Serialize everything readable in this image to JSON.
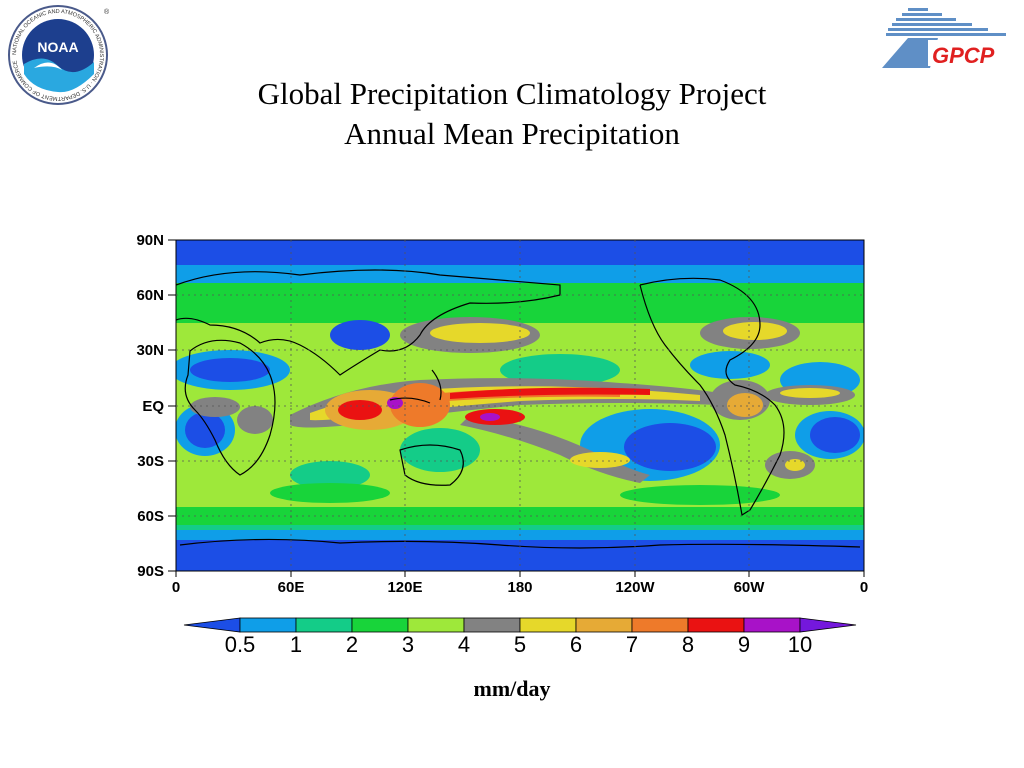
{
  "logos": {
    "noaa": {
      "wordmark": "NOAA",
      "ring_text": "NATIONAL OCEANIC AND ATMOSPHERIC ADMINISTRATION · U.S. DEPARTMENT OF COMMERCE",
      "registered": "®"
    },
    "gpcp": {
      "wordmark": "GPCP"
    }
  },
  "title": {
    "line1": "Global Precipitation Climatology Project",
    "line2": "Annual Mean Precipitation"
  },
  "map": {
    "y_ticks": [
      "90N",
      "60N",
      "30N",
      "EQ",
      "30S",
      "60S",
      "90S"
    ],
    "x_ticks": [
      "0",
      "60E",
      "120E",
      "180",
      "120W",
      "60W",
      "0"
    ]
  },
  "colorbar": {
    "labels": [
      "0.5",
      "1",
      "2",
      "3",
      "4",
      "5",
      "6",
      "7",
      "8",
      "9",
      "10"
    ],
    "colors": [
      "#1c4ee6",
      "#0f9ee8",
      "#14cc88",
      "#18d43a",
      "#9ee83a",
      "#828282",
      "#e6d82a",
      "#e6aa36",
      "#ee7a2a",
      "#ea1212",
      "#a812c8",
      "#7418dc"
    ]
  },
  "units": "mm/day"
}
